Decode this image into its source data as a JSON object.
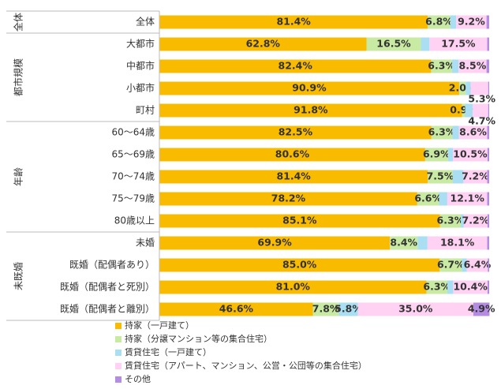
{
  "chart_data": {
    "type": "stacked-bar-horizontal",
    "groups": [
      {
        "label": "全体",
        "count": 1
      },
      {
        "label": "都市規模",
        "count": 4
      },
      {
        "label": "年齢",
        "count": 5
      },
      {
        "label": "未既婚",
        "count": 4
      }
    ],
    "categories": [
      "全体",
      "大都市",
      "中都市",
      "小都市",
      "町村",
      "60～64歳",
      "65～69歳",
      "70～74歳",
      "75～79歳",
      "80歳以上",
      "未婚",
      "既婚（配偶者あり）",
      "既婚（配偶者と死別）",
      "既婚（配偶者と離別）"
    ],
    "xlim": [
      0,
      100
    ],
    "series": [
      {
        "name": "持家（一戸建て）",
        "color": "#f9bb00",
        "values": [
          81.4,
          62.8,
          82.4,
          90.9,
          91.8,
          82.5,
          80.6,
          81.4,
          78.2,
          85.1,
          69.9,
          85.0,
          81.0,
          46.6
        ],
        "value_labels": [
          "81.4%",
          "62.8%",
          "82.4%",
          "90.9%",
          "91.8%",
          "82.5%",
          "80.6%",
          "81.4%",
          "78.2%",
          "85.1%",
          "69.9%",
          "85.0%",
          "81.0%",
          "46.6%"
        ]
      },
      {
        "name": "持家（分譲マンション等の集合住宅）",
        "color": "#c9eaa2",
        "values": [
          6.8,
          16.5,
          6.3,
          2.0,
          0.9,
          6.3,
          6.9,
          7.5,
          6.6,
          6.3,
          8.4,
          6.7,
          6.3,
          7.8
        ],
        "value_labels": [
          "6.8%",
          "16.5%",
          "6.3%",
          "2.0%",
          "0.9%",
          "6.3%",
          "6.9%",
          "7.5%",
          "6.6%",
          "6.3%",
          "8.4%",
          "6.7%",
          "6.3%",
          "7.8%"
        ]
      },
      {
        "name": "賃貸住宅（一戸建て）",
        "color": "#a9def3",
        "values": [
          1.8,
          2.6,
          2.0,
          1.5,
          2.3,
          2.0,
          1.5,
          3.3,
          2.5,
          0.9,
          3.0,
          1.5,
          1.8,
          5.8
        ],
        "value_labels": [
          null,
          null,
          null,
          null,
          null,
          null,
          null,
          null,
          null,
          null,
          null,
          null,
          null,
          "5.8%"
        ]
      },
      {
        "name": "賃貸住宅（アパート、マンション、公営・公団等の集合住宅）",
        "color": "#ffd2f4",
        "values": [
          9.2,
          17.5,
          8.5,
          5.3,
          4.7,
          8.6,
          10.5,
          7.2,
          12.1,
          7.2,
          18.1,
          6.4,
          10.4,
          35.0
        ],
        "value_labels": [
          "9.2%",
          "17.5%",
          "8.5%",
          "5.3%",
          "4.7%",
          "8.6%",
          "10.5%",
          "7.2%",
          "12.1%",
          "7.2%",
          "18.1%",
          "6.4%",
          "10.4%",
          "35.0%"
        ]
      },
      {
        "name": "その他",
        "color": "#b48de2",
        "values": [
          0.8,
          0.6,
          0.8,
          0.3,
          0.3,
          0.6,
          0.5,
          0.6,
          0.6,
          0.5,
          0.6,
          0.4,
          0.5,
          4.9
        ],
        "value_labels": [
          null,
          null,
          null,
          null,
          null,
          null,
          null,
          null,
          null,
          null,
          null,
          null,
          null,
          "4.9%"
        ]
      }
    ]
  }
}
